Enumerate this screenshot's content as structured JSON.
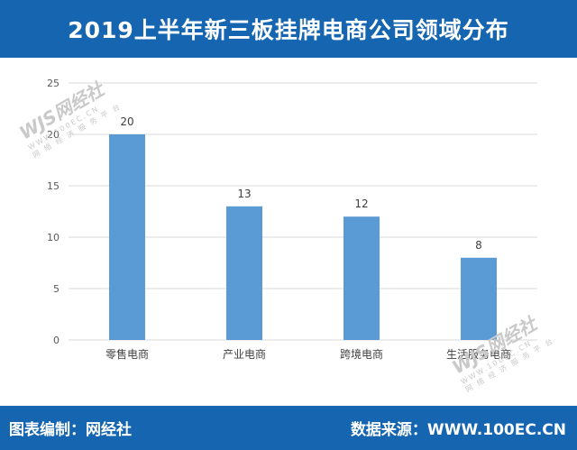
{
  "header": {
    "title": "2019上半年新三板挂牌电商公司领域分布"
  },
  "footer": {
    "left": "图表编制：网经社",
    "right": "数据来源：WWW.100EC.CN"
  },
  "watermark": {
    "logo": "WJS网经社",
    "url": "WWW.100EC.CN",
    "tagline": "网 络 经 济 服 务 平 台"
  },
  "chart_data": {
    "type": "bar",
    "title": "2019上半年新三板挂牌电商公司领域分布",
    "categories": [
      "零售电商",
      "产业电商",
      "跨境电商",
      "生活服务电商"
    ],
    "values": [
      20,
      13,
      12,
      8
    ],
    "ylim": [
      0,
      25
    ],
    "yticks": [
      0,
      5,
      10,
      15,
      20,
      25
    ],
    "grid": true,
    "bar_color": "#5b9bd5",
    "data_labels": true,
    "xlabel": "",
    "ylabel": ""
  },
  "colors": {
    "header_bg": "#1565b0",
    "grid": "#d9d9d9"
  }
}
